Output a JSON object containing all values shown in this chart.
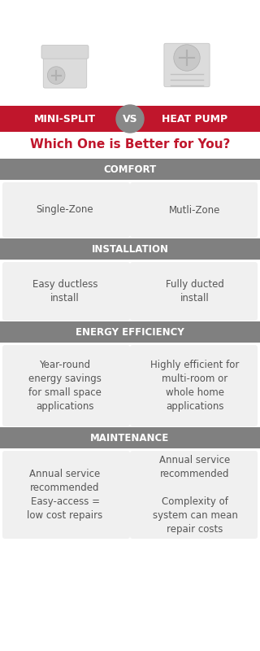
{
  "bg_color": "#ffffff",
  "red_color": "#c0162c",
  "gray_header_color": "#808080",
  "cell_bg_color": "#f0f0f0",
  "title": "Which One is Better for You?",
  "title_color": "#c0162c",
  "left_label": "MINI-SPLIT",
  "right_label": "HEAT PUMP",
  "vs_text": "VS",
  "sections": [
    {
      "header": "COMFORT",
      "left": "Single-Zone",
      "right": "Mutli-Zone"
    },
    {
      "header": "INSTALLATION",
      "left": "Easy ductless\ninstall",
      "right": "Fully ducted\ninstall"
    },
    {
      "header": "ENERGY EFFICIENCY",
      "left": "Year-round\nenergy savings\nfor small space\napplications",
      "right": "Highly efficient for\nmulti-room or\nwhole home\napplications"
    },
    {
      "header": "MAINTENANCE",
      "left": "Annual service\nrecommended\nEasy-access =\nlow cost repairs",
      "right": "Annual service\nrecommended\n\nComplexity of\nsystem can mean\nrepair costs"
    }
  ]
}
